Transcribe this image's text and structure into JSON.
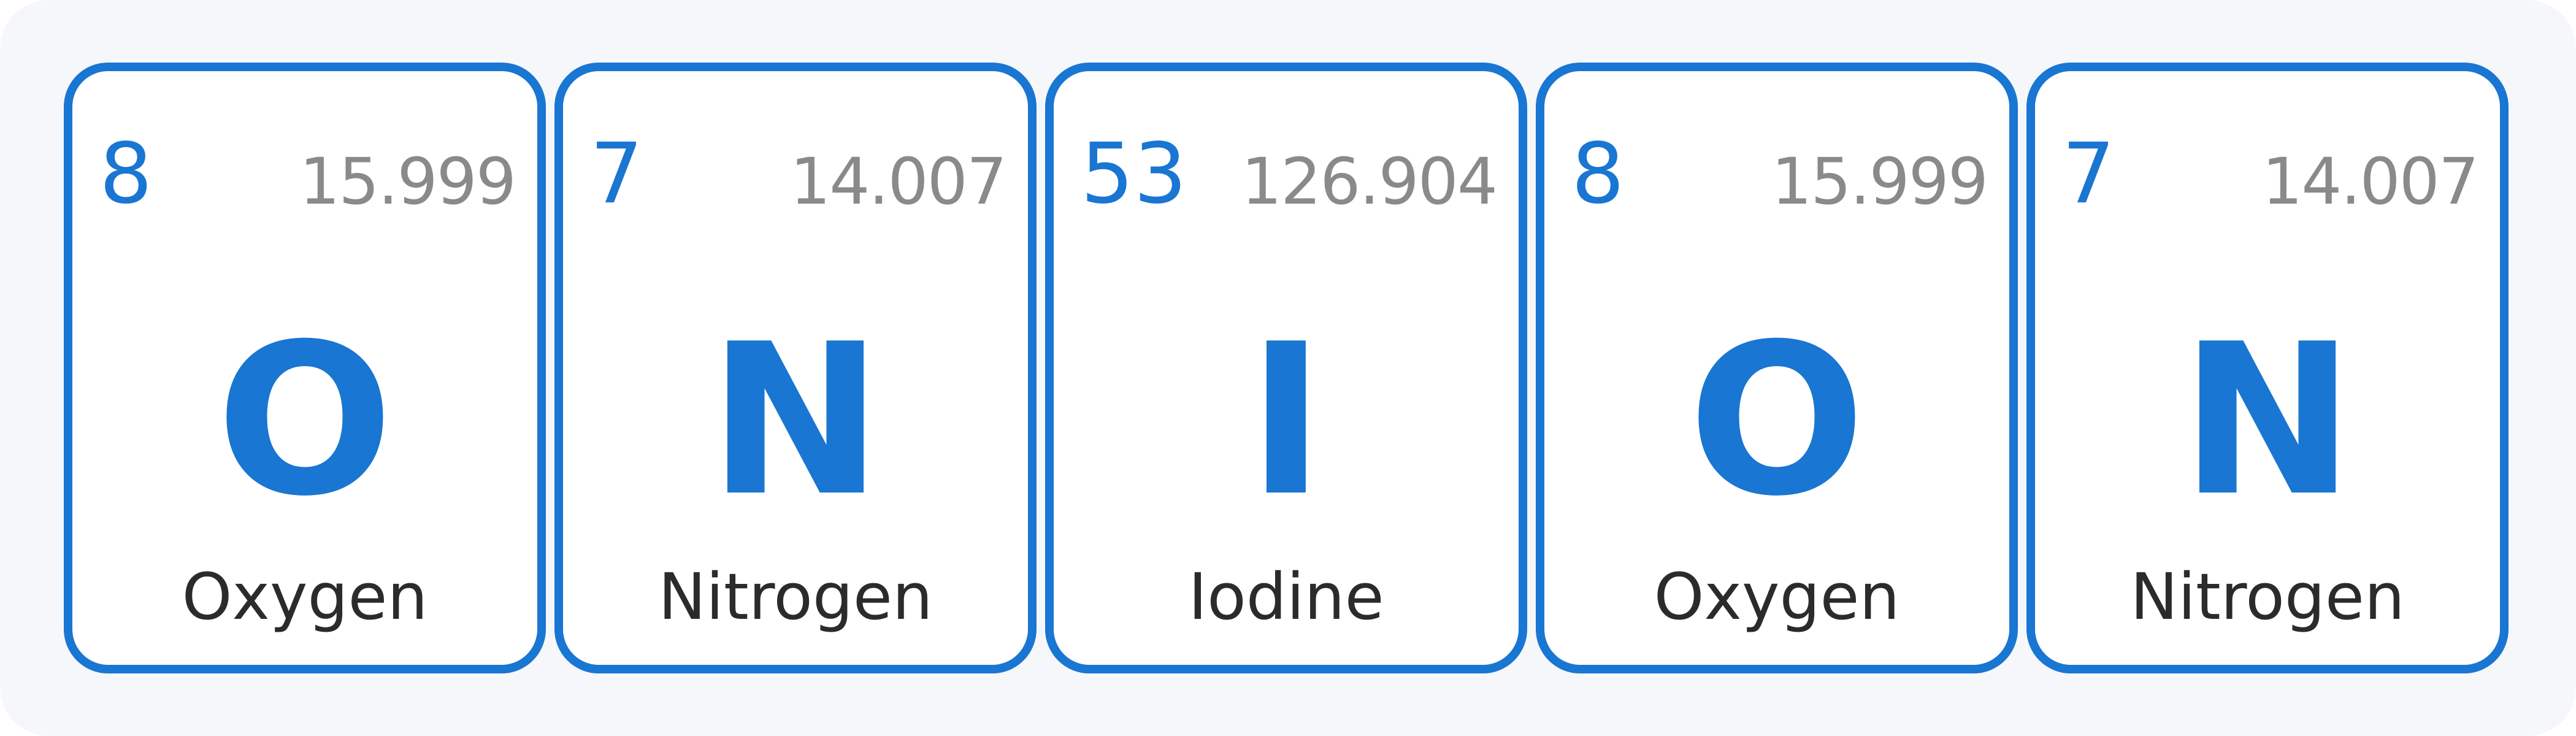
{
  "tiles": [
    {
      "number": "8",
      "mass": "15.999",
      "symbol": "O",
      "name": "Oxygen"
    },
    {
      "number": "7",
      "mass": "14.007",
      "symbol": "N",
      "name": "Nitrogen"
    },
    {
      "number": "53",
      "mass": "126.904",
      "symbol": "I",
      "name": "Iodine"
    },
    {
      "number": "8",
      "mass": "15.999",
      "symbol": "O",
      "name": "Oxygen"
    },
    {
      "number": "7",
      "mass": "14.007",
      "symbol": "N",
      "name": "Nitrogen"
    }
  ],
  "colors": {
    "accent": "#1976d2",
    "mass_text": "#8a8a8a",
    "name_text": "#2b2b2b",
    "panel_background": "#f5f7fa",
    "tile_background": "#ffffff"
  }
}
